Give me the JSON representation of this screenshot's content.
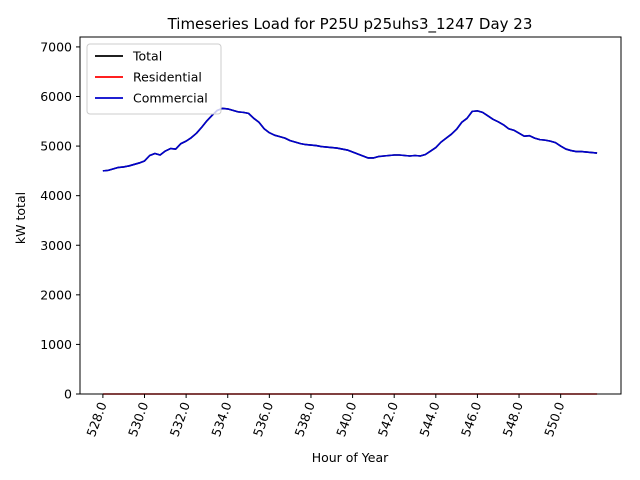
{
  "chart_data": {
    "type": "line",
    "title": "Timeseries Load for P25U p25uhs3_1247  Day 23",
    "xlabel": "Hour of Year",
    "ylabel": "kW total",
    "xlim": [
      526.9,
      552.9
    ],
    "ylim": [
      0,
      7200
    ],
    "x_ticks": [
      528,
      530,
      532,
      534,
      536,
      538,
      540,
      542,
      544,
      546,
      548,
      550
    ],
    "x_tick_labels": [
      "528.0",
      "530.0",
      "532.0",
      "534.0",
      "536.0",
      "538.0",
      "540.0",
      "542.0",
      "544.0",
      "546.0",
      "548.0",
      "550.0"
    ],
    "y_ticks": [
      0,
      1000,
      2000,
      3000,
      4000,
      5000,
      6000,
      7000
    ],
    "y_tick_labels": [
      "0",
      "1000",
      "2000",
      "3000",
      "4000",
      "5000",
      "6000",
      "7000"
    ],
    "x_tick_rotation": 70,
    "grid": false,
    "legend_position": "top-left",
    "x": [
      528.0,
      528.25,
      528.5,
      528.75,
      529.0,
      529.25,
      529.5,
      529.75,
      530.0,
      530.25,
      530.5,
      530.75,
      531.0,
      531.25,
      531.5,
      531.75,
      532.0,
      532.25,
      532.5,
      532.75,
      533.0,
      533.25,
      533.5,
      533.75,
      534.0,
      534.25,
      534.5,
      534.75,
      535.0,
      535.25,
      535.5,
      535.75,
      536.0,
      536.25,
      536.5,
      536.75,
      537.0,
      537.25,
      537.5,
      537.75,
      538.0,
      538.25,
      538.5,
      538.75,
      539.0,
      539.25,
      539.5,
      539.75,
      540.0,
      540.25,
      540.5,
      540.75,
      541.0,
      541.25,
      541.5,
      541.75,
      542.0,
      542.25,
      542.5,
      542.75,
      543.0,
      543.25,
      543.5,
      543.75,
      544.0,
      544.25,
      544.5,
      544.75,
      545.0,
      545.25,
      545.5,
      545.75,
      546.0,
      546.25,
      546.5,
      546.75,
      547.0,
      547.25,
      547.5,
      547.75,
      548.0,
      548.25,
      548.5,
      548.75,
      549.0,
      549.25,
      549.5,
      549.75,
      550.0,
      550.25,
      550.5,
      550.75,
      551.0,
      551.25,
      551.5,
      551.75
    ],
    "series": [
      {
        "name": "Total",
        "color": "#000000",
        "values": [
          4500,
          4510,
          4540,
          4570,
          4580,
          4600,
          4630,
          4660,
          4700,
          4810,
          4850,
          4820,
          4900,
          4950,
          4940,
          5050,
          5100,
          5170,
          5260,
          5380,
          5510,
          5620,
          5720,
          5760,
          5750,
          5720,
          5690,
          5680,
          5660,
          5560,
          5480,
          5350,
          5270,
          5220,
          5190,
          5160,
          5110,
          5080,
          5050,
          5030,
          5020,
          5010,
          4990,
          4980,
          4970,
          4960,
          4940,
          4920,
          4880,
          4840,
          4800,
          4760,
          4760,
          4790,
          4800,
          4810,
          4820,
          4820,
          4810,
          4800,
          4810,
          4800,
          4830,
          4900,
          4970,
          5080,
          5160,
          5240,
          5340,
          5480,
          5560,
          5700,
          5710,
          5680,
          5610,
          5540,
          5490,
          5430,
          5350,
          5320,
          5260,
          5200,
          5210,
          5160,
          5130,
          5120,
          5100,
          5070,
          5000,
          4940,
          4910,
          4890,
          4890,
          4880,
          4870,
          4860
        ]
      },
      {
        "name": "Residential",
        "color": "#ff0000",
        "values": [
          0,
          0,
          0,
          0,
          0,
          0,
          0,
          0,
          0,
          0,
          0,
          0,
          0,
          0,
          0,
          0,
          0,
          0,
          0,
          0,
          0,
          0,
          0,
          0,
          0,
          0,
          0,
          0,
          0,
          0,
          0,
          0,
          0,
          0,
          0,
          0,
          0,
          0,
          0,
          0,
          0,
          0,
          0,
          0,
          0,
          0,
          0,
          0,
          0,
          0,
          0,
          0,
          0,
          0,
          0,
          0,
          0,
          0,
          0,
          0,
          0,
          0,
          0,
          0,
          0,
          0,
          0,
          0,
          0,
          0,
          0,
          0,
          0,
          0,
          0,
          0,
          0,
          0,
          0,
          0,
          0,
          0,
          0,
          0,
          0,
          0,
          0,
          0,
          0,
          0,
          0,
          0,
          0,
          0,
          0,
          0
        ]
      },
      {
        "name": "Commercial",
        "color": "#0000cc",
        "values": [
          4500,
          4510,
          4540,
          4570,
          4580,
          4600,
          4630,
          4660,
          4700,
          4810,
          4850,
          4820,
          4900,
          4950,
          4940,
          5050,
          5100,
          5170,
          5260,
          5380,
          5510,
          5620,
          5720,
          5760,
          5750,
          5720,
          5690,
          5680,
          5660,
          5560,
          5480,
          5350,
          5270,
          5220,
          5190,
          5160,
          5110,
          5080,
          5050,
          5030,
          5020,
          5010,
          4990,
          4980,
          4970,
          4960,
          4940,
          4920,
          4880,
          4840,
          4800,
          4760,
          4760,
          4790,
          4800,
          4810,
          4820,
          4820,
          4810,
          4800,
          4810,
          4800,
          4830,
          4900,
          4970,
          5080,
          5160,
          5240,
          5340,
          5480,
          5560,
          5700,
          5710,
          5680,
          5610,
          5540,
          5490,
          5430,
          5350,
          5320,
          5260,
          5200,
          5210,
          5160,
          5130,
          5120,
          5100,
          5070,
          5000,
          4940,
          4910,
          4890,
          4890,
          4880,
          4870,
          4860
        ]
      }
    ]
  }
}
